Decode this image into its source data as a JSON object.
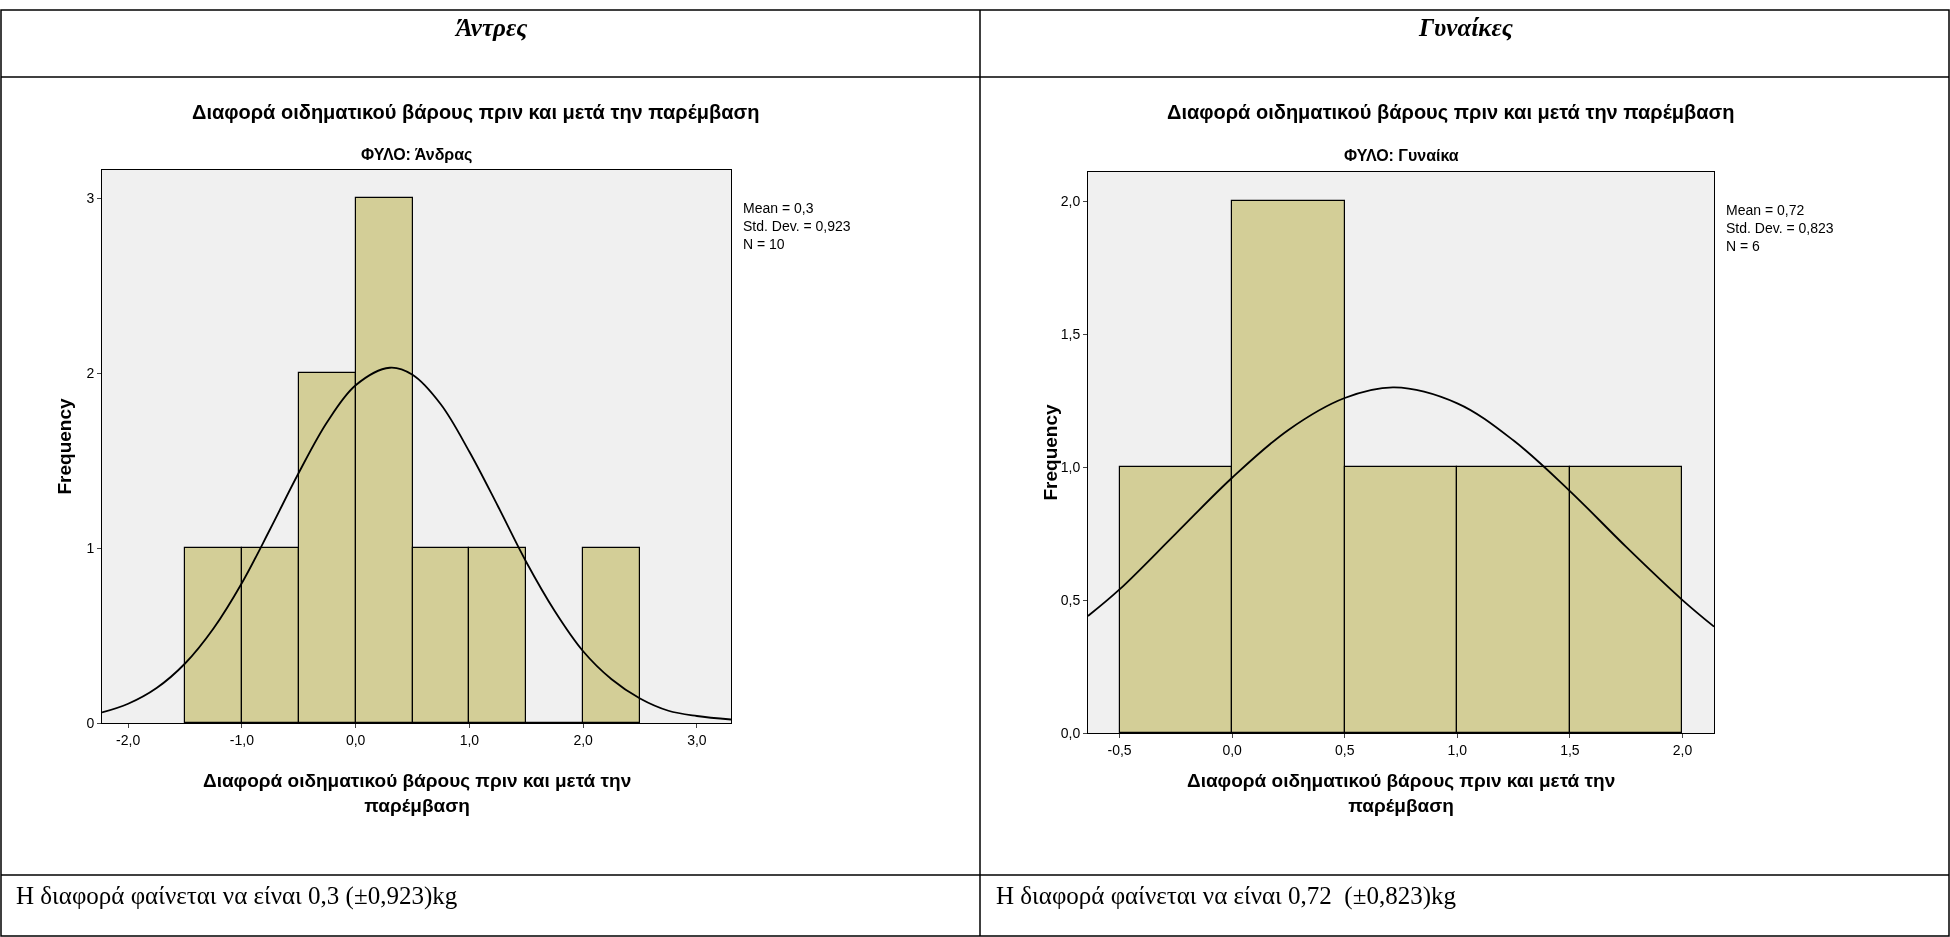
{
  "chart_data": [
    {
      "type": "histogram",
      "title": "Διαφορά οιδηματικού βάρους πριν και μετά την παρέμβαση",
      "subtitle": "ΦΥΛΟ: Άνδρας",
      "xlabel": "Διαφορά οιδηματικού βάρους πριν και μετά την\nπαρέμβαση",
      "ylabel": "Frequency",
      "annotations": [
        "Mean = 0,3\nStd. Dev. = 0,923\nN = 10",
        "Άντρες",
        "Η διαφορά φαίνεται να είναι 0,3 (±0,923)kg"
      ],
      "bins": [
        -1.5,
        -1.0,
        -0.5,
        0.0,
        0.5,
        1.0,
        1.5,
        2.0,
        2.5
      ],
      "series": [
        {
          "type": "histogram",
          "color": "#d3ce97",
          "values": [
            1,
            1,
            2,
            3,
            1,
            1,
            0,
            1
          ]
        },
        {
          "type": "line",
          "color": "#000000",
          "x": [
            -2.23,
            -2.0,
            -1.75,
            -1.5,
            -1.25,
            -1.0,
            -0.75,
            -0.5,
            -0.25,
            0.0,
            0.3,
            0.5,
            0.75,
            1.0,
            1.25,
            1.5,
            1.75,
            2.0,
            2.25,
            2.5,
            2.75,
            3.0,
            3.3
          ],
          "values": [
            0.06,
            0.11,
            0.2,
            0.34,
            0.54,
            0.8,
            1.11,
            1.43,
            1.72,
            1.93,
            2.03,
            1.99,
            1.82,
            1.55,
            1.24,
            0.92,
            0.64,
            0.41,
            0.25,
            0.14,
            0.07,
            0.04,
            0.02
          ]
        }
      ],
      "xlim": [
        -2.23,
        3.3
      ],
      "ylim": [
        0,
        3.16
      ],
      "xticks": [
        {
          "value": -2,
          "label": "-2,0"
        },
        {
          "value": -1,
          "label": "-1,0"
        },
        {
          "value": 0,
          "label": "0,0"
        },
        {
          "value": 1,
          "label": "1,0"
        },
        {
          "value": 2,
          "label": "2,0"
        },
        {
          "value": 3,
          "label": "3,0"
        }
      ],
      "yticks": [
        0,
        1,
        2,
        3
      ],
      "grid": false,
      "legend": false
    },
    {
      "type": "histogram",
      "title": "Διαφορά οιδηματικού βάρους πριν και μετά την παρέμβαση",
      "subtitle": "ΦΥΛΟ: Γυναίκα",
      "xlabel": "Διαφορά οιδηματικού βάρους πριν και μετά την\nπαρέμβαση",
      "ylabel": "Frequency",
      "annotations": [
        "Mean = 0,72\nStd. Dev. = 0,823\nN = 6",
        "Γυναίκες",
        "Η διαφορά φαίνεται να είναι 0,72  (±0,823)kg"
      ],
      "bins": [
        -0.5,
        0.0,
        0.5,
        1.0,
        1.5,
        2.0
      ],
      "series": [
        {
          "type": "histogram",
          "color": "#d3ce97",
          "values": [
            1,
            2,
            1,
            1,
            1
          ]
        },
        {
          "type": "line",
          "color": "#000000",
          "x": [
            -0.64,
            -0.5,
            -0.25,
            0.0,
            0.25,
            0.5,
            0.72,
            1.0,
            1.25,
            1.5,
            1.75,
            2.0,
            2.14
          ],
          "values": [
            0.44,
            0.54,
            0.75,
            0.96,
            1.14,
            1.26,
            1.3,
            1.24,
            1.1,
            0.91,
            0.7,
            0.5,
            0.4
          ]
        }
      ],
      "xlim": [
        -0.64,
        2.14
      ],
      "ylim": [
        0,
        2.11
      ],
      "xticks": [
        {
          "value": -0.5,
          "label": "-0,5"
        },
        {
          "value": 0,
          "label": "0,0"
        },
        {
          "value": 0.5,
          "label": "0,5"
        },
        {
          "value": 1,
          "label": "1,0"
        },
        {
          "value": 1.5,
          "label": "1,5"
        },
        {
          "value": 2,
          "label": "2,0"
        }
      ],
      "yticks": [
        {
          "value": 0,
          "label": "0,0"
        },
        {
          "value": 0.5,
          "label": "0,5"
        },
        {
          "value": 1,
          "label": "1,0"
        },
        {
          "value": 1.5,
          "label": "1,5"
        },
        {
          "value": 2,
          "label": "2,0"
        }
      ],
      "grid": false,
      "legend": false
    }
  ]
}
